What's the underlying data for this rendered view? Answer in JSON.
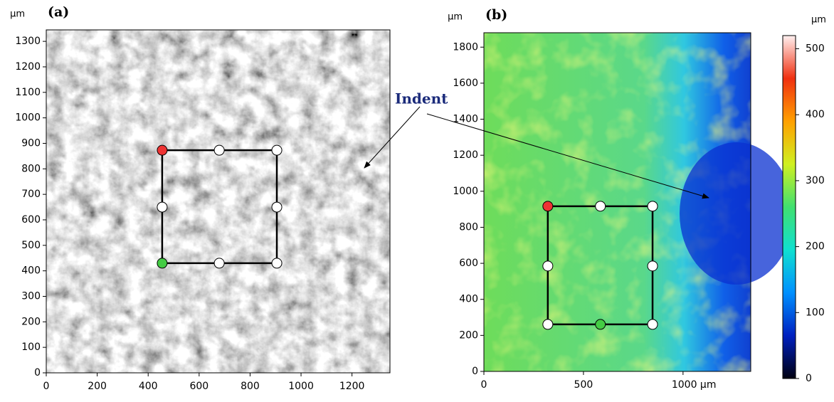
{
  "chart_data": [
    {
      "type": "scatter",
      "label": "(a)",
      "y_unit": "µm",
      "xlim": [
        0,
        1349
      ],
      "ylim": [
        0,
        1345
      ],
      "xticks": [
        0,
        200,
        400,
        600,
        800,
        1000,
        1200
      ],
      "yticks": [
        0,
        100,
        200,
        300,
        400,
        500,
        600,
        700,
        800,
        900,
        1000,
        1100,
        1200,
        1300
      ],
      "x": [
        455,
        679,
        905,
        905,
        905,
        679,
        455,
        455
      ],
      "y": [
        873,
        873,
        873,
        650,
        430,
        430,
        430,
        650
      ],
      "colors": [
        "#e33",
        "#fff",
        "#fff",
        "#fff",
        "#fff",
        "#fff",
        "#4c4",
        "#fff"
      ],
      "background": "sem"
    },
    {
      "type": "scatter",
      "label": "(b)",
      "y_unit": "µm",
      "xlim": [
        0,
        1340
      ],
      "ylim": [
        0,
        1880
      ],
      "xticks": [
        0,
        500,
        {
          "value": 1000,
          "label": "1000 µm"
        }
      ],
      "yticks": [
        0,
        200,
        400,
        600,
        800,
        1000,
        1200,
        1400,
        1600,
        1800
      ],
      "x": [
        321,
        585,
        847,
        847,
        847,
        585,
        321,
        321
      ],
      "y": [
        917,
        917,
        917,
        585,
        261,
        261,
        261,
        585
      ],
      "colors": [
        "#e33",
        "#fff",
        "#fff",
        "#fff",
        "#fff",
        "#4c4",
        "#fff",
        "#fff"
      ],
      "background": "height",
      "colorbar": {
        "unit": "µm",
        "lim": [
          0,
          520
        ],
        "ticks": [
          0,
          100,
          200,
          300,
          400,
          500
        ],
        "colors": [
          "#000010",
          "#0020c0",
          "#0090ff",
          "#10e0d0",
          "#40e070",
          "#d0f020",
          "#ffa000",
          "#f03010",
          "#fff0f0"
        ]
      }
    }
  ],
  "annotation": "Indent"
}
